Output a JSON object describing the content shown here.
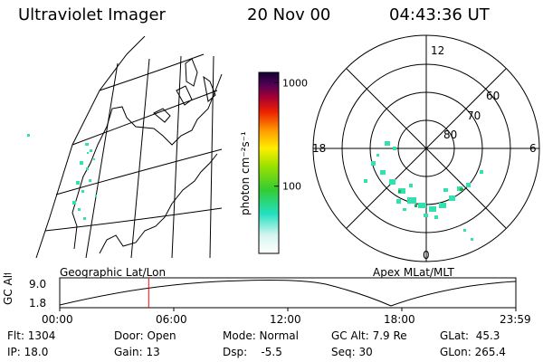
{
  "header": {
    "title": "Ultraviolet Imager",
    "date": "20 Nov 00",
    "time": "04:43:36 UT"
  },
  "colorbar": {
    "unit_label": "photon cm⁻²s⁻¹",
    "ticks": [
      "1000",
      "100"
    ],
    "ticks_values": [
      1000,
      100
    ],
    "range_log": [
      1.35,
      3.1
    ]
  },
  "geo_panel": {
    "label": "Geographic Lat/Lon"
  },
  "polar_panel": {
    "label": "Apex MLat/MLT",
    "mlt_labels": {
      "top": "12",
      "left": "18",
      "right": "6",
      "bottom": "0"
    },
    "lat_labels": [
      "60",
      "70",
      "80"
    ]
  },
  "altitude_plot": {
    "ylabel": "GC Alt",
    "yticks": [
      "9.0",
      "1.8"
    ],
    "xticks": [
      "00:00",
      "06:00",
      "12:00",
      "18:00",
      "23:59"
    ],
    "current_time_fraction": 0.195,
    "marker_color": "#ff0000"
  },
  "info": {
    "flt": "Flt: 1304",
    "ip": "IP: 18.0",
    "door": "Door: Open",
    "gain": "Gain: 13",
    "mode": "Mode: Normal",
    "dsp": "Dsp:    -5.5",
    "gcalt": "GC Alt: 7.9 Re",
    "seq": "Seq: 30",
    "glat": "GLat:  45.3",
    "glon": "GLon: 265.4"
  }
}
